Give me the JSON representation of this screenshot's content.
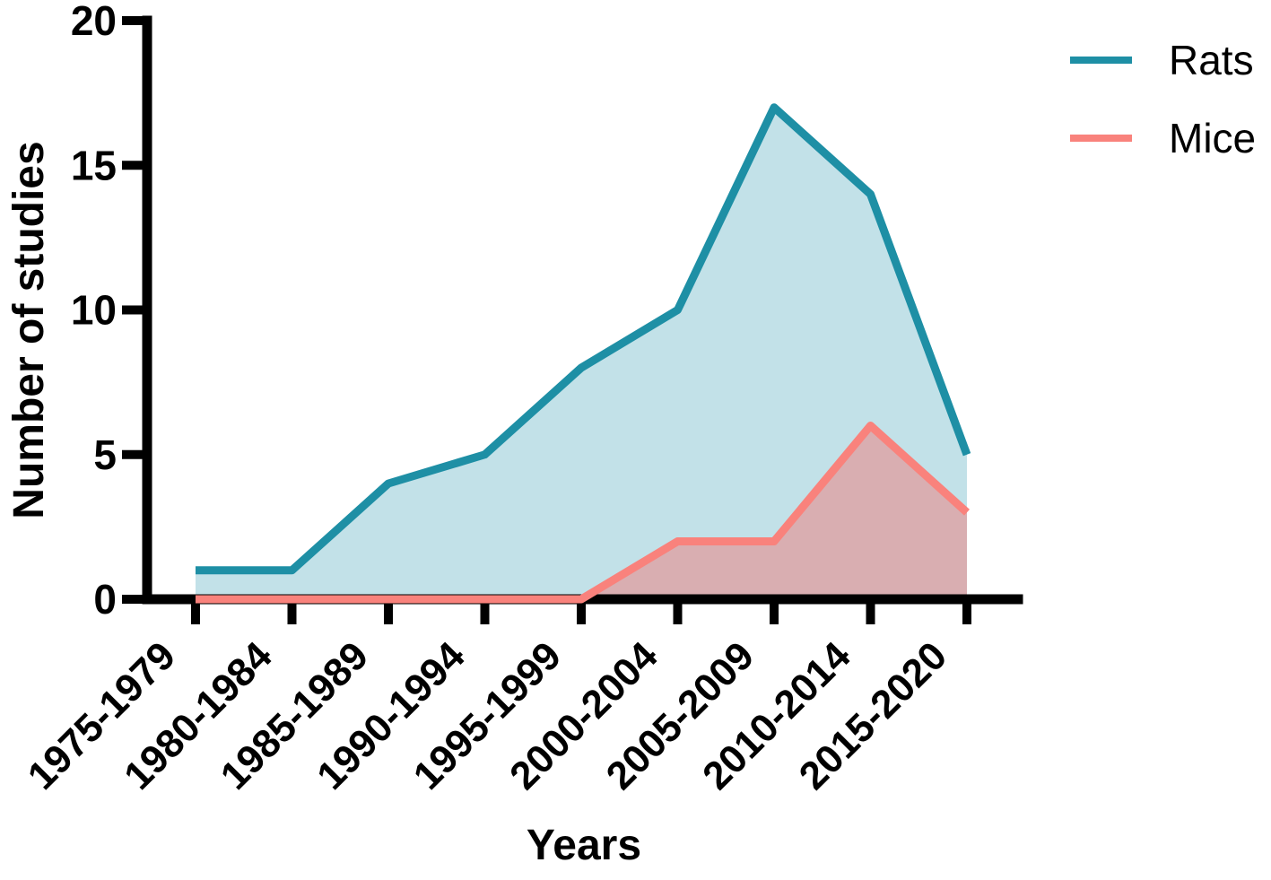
{
  "chart_data": {
    "type": "area",
    "title": "",
    "xlabel": "Years",
    "ylabel": "Number of studies",
    "categories": [
      "1975-1979",
      "1980-1984",
      "1985-1989",
      "1990-1994",
      "1995-1999",
      "2000-2004",
      "2005-2009",
      "2010-2014",
      "2015-2020"
    ],
    "series": [
      {
        "name": "Rats",
        "values": [
          1,
          1,
          4,
          5,
          8,
          10,
          17,
          14,
          5
        ],
        "line_color": "#1E8FA5",
        "fill_color": "#C2E1E8"
      },
      {
        "name": "Mice",
        "values": [
          0,
          0,
          0,
          0,
          0,
          2,
          2,
          6,
          3
        ],
        "line_color": "#F9827C",
        "fill_color": "#D9AEB1"
      }
    ],
    "ylim": [
      0,
      20
    ],
    "yticks": [
      0,
      5,
      10,
      15,
      20
    ],
    "grid": false,
    "legend_position": "top-right",
    "axis_color": "#000000",
    "text_color": "#000000",
    "background_color": "#FFFFFF"
  }
}
